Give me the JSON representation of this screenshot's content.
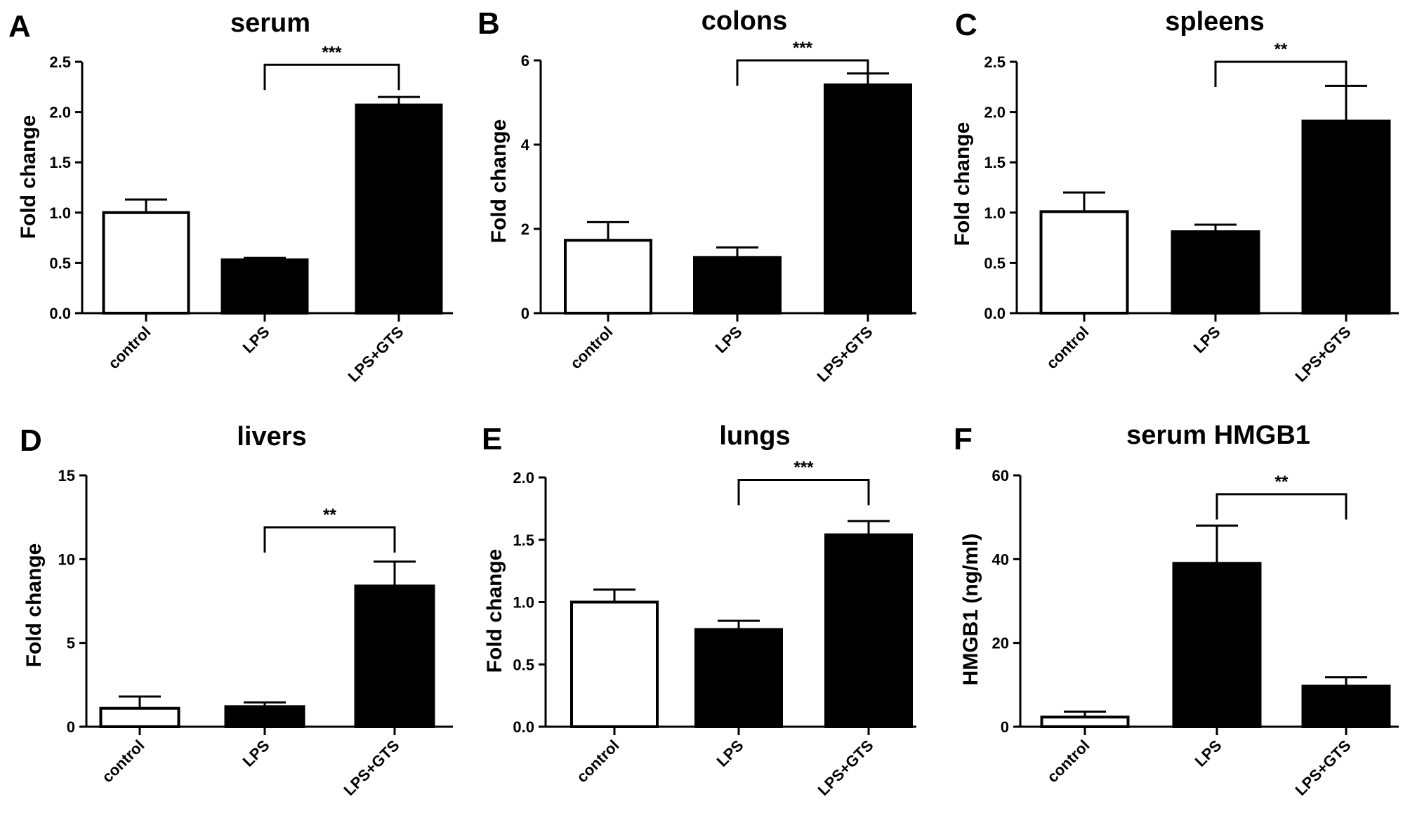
{
  "chart_data": [
    {
      "panel": "A",
      "type": "bar",
      "title": "serum",
      "ylabel": "Fold change",
      "xlabel": "",
      "categories": [
        "control",
        "LPS",
        "LPS+GTS"
      ],
      "values": [
        1.0,
        0.53,
        2.07
      ],
      "errors": [
        0.13,
        0.02,
        0.08
      ],
      "fills": [
        "#ffffff",
        "#000000",
        "#000000"
      ],
      "ylim": [
        0,
        2.5
      ],
      "yticks": [
        0.0,
        0.5,
        1.0,
        1.5,
        2.0,
        2.5
      ],
      "ytick_labels": [
        "0.0",
        "0.5",
        "1.0",
        "1.5",
        "2.0",
        "2.5"
      ],
      "significance": {
        "from": 1,
        "to": 2,
        "label": "***",
        "y": 2.47
      },
      "grid": false,
      "legend": "none"
    },
    {
      "panel": "B",
      "type": "bar",
      "title": "colons",
      "ylabel": "Fold change",
      "xlabel": "",
      "categories": [
        "control",
        "LPS",
        "LPS+GTS"
      ],
      "values": [
        1.73,
        1.32,
        5.42
      ],
      "errors": [
        0.43,
        0.24,
        0.27
      ],
      "fills": [
        "#ffffff",
        "#000000",
        "#000000"
      ],
      "ylim": [
        0,
        6
      ],
      "yticks": [
        0,
        2,
        4,
        6
      ],
      "ytick_labels": [
        "0",
        "2",
        "4",
        "6"
      ],
      "significance": {
        "from": 1,
        "to": 2,
        "label": "***",
        "y": 6.0
      },
      "grid": false,
      "legend": "none"
    },
    {
      "panel": "C",
      "type": "bar",
      "title": "spleens",
      "ylabel": "Fold change",
      "xlabel": "",
      "categories": [
        "control",
        "LPS",
        "LPS+GTS"
      ],
      "values": [
        1.01,
        0.81,
        1.91
      ],
      "errors": [
        0.19,
        0.07,
        0.35
      ],
      "fills": [
        "#ffffff",
        "#000000",
        "#000000"
      ],
      "ylim": [
        0,
        2.5
      ],
      "yticks": [
        0.0,
        0.5,
        1.0,
        1.5,
        2.0,
        2.5
      ],
      "ytick_labels": [
        "0.0",
        "0.5",
        "1.0",
        "1.5",
        "2.0",
        "2.5"
      ],
      "significance": {
        "from": 1,
        "to": 2,
        "label": "**",
        "y": 2.5
      },
      "grid": false,
      "legend": "none"
    },
    {
      "panel": "D",
      "type": "bar",
      "title": "livers",
      "ylabel": "Fold change",
      "xlabel": "",
      "categories": [
        "control",
        "LPS",
        "LPS+GTS"
      ],
      "values": [
        1.1,
        1.2,
        8.4
      ],
      "errors": [
        0.7,
        0.25,
        1.45
      ],
      "fills": [
        "#ffffff",
        "#000000",
        "#000000"
      ],
      "ylim": [
        0,
        15
      ],
      "yticks": [
        0,
        5,
        10,
        15
      ],
      "ytick_labels": [
        "0",
        "5",
        "10",
        "15"
      ],
      "significance": {
        "from": 1,
        "to": 2,
        "label": "**",
        "y": 11.9
      },
      "grid": false,
      "legend": "none"
    },
    {
      "panel": "E",
      "type": "bar",
      "title": "lungs",
      "ylabel": "Fold change",
      "xlabel": "",
      "categories": [
        "control",
        "LPS",
        "LPS+GTS"
      ],
      "values": [
        1.0,
        0.78,
        1.54
      ],
      "errors": [
        0.1,
        0.07,
        0.11
      ],
      "fills": [
        "#ffffff",
        "#000000",
        "#000000"
      ],
      "ylim": [
        0,
        2.0
      ],
      "yticks": [
        0.0,
        0.5,
        1.0,
        1.5,
        2.0
      ],
      "ytick_labels": [
        "0.0",
        "0.5",
        "1.0",
        "1.5",
        "2.0"
      ],
      "significance": {
        "from": 1,
        "to": 2,
        "label": "***",
        "y": 1.98
      },
      "grid": false,
      "legend": "none"
    },
    {
      "panel": "F",
      "type": "bar",
      "title": "serum HMGB1",
      "ylabel": "HMGB1 (ng/ml)",
      "xlabel": "",
      "categories": [
        "control",
        "LPS",
        "LPS+GTS"
      ],
      "values": [
        2.3,
        39.0,
        9.7
      ],
      "errors": [
        1.3,
        9.0,
        2.1
      ],
      "fills": [
        "#ffffff",
        "#000000",
        "#000000"
      ],
      "ylim": [
        0,
        60
      ],
      "yticks": [
        0,
        20,
        40,
        60
      ],
      "ytick_labels": [
        "0",
        "20",
        "40",
        "60"
      ],
      "significance": {
        "from": 1,
        "to": 2,
        "label": "**",
        "y": 55.5
      },
      "grid": false,
      "legend": "none"
    }
  ]
}
